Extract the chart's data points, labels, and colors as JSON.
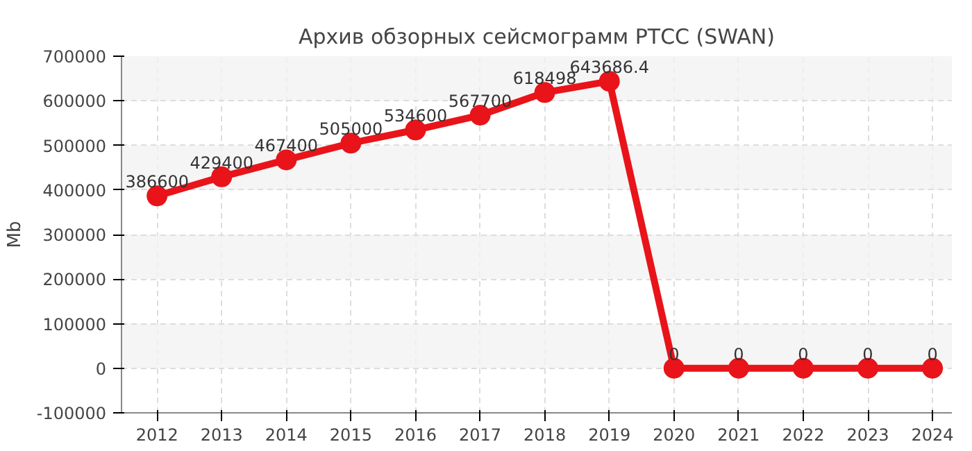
{
  "chart_data": {
    "type": "line",
    "title": "Архив обзорных сейсмограмм РТСС (SWAN)",
    "ylabel": "Mb",
    "x": [
      2012,
      2013,
      2014,
      2015,
      2016,
      2017,
      2018,
      2019,
      2020,
      2021,
      2022,
      2023,
      2024
    ],
    "series": [
      {
        "color": "#e8141a",
        "values": [
          386600,
          429400,
          467400,
          505000,
          534600,
          567700,
          618498,
          643686.4,
          0,
          0,
          0,
          0,
          0
        ]
      }
    ],
    "xlim": [
      2011.45,
      2024.3
    ],
    "xticks": [
      2012,
      2013,
      2014,
      2015,
      2016,
      2017,
      2018,
      2019,
      2020,
      2021,
      2022,
      2023,
      2024
    ],
    "ylim": [
      -100000,
      700000
    ],
    "yticks": [
      -100000,
      0,
      100000,
      200000,
      300000,
      400000,
      500000,
      600000,
      700000
    ],
    "grid": true,
    "marker": "circle",
    "line_style": "solid",
    "data_labels": true
  }
}
